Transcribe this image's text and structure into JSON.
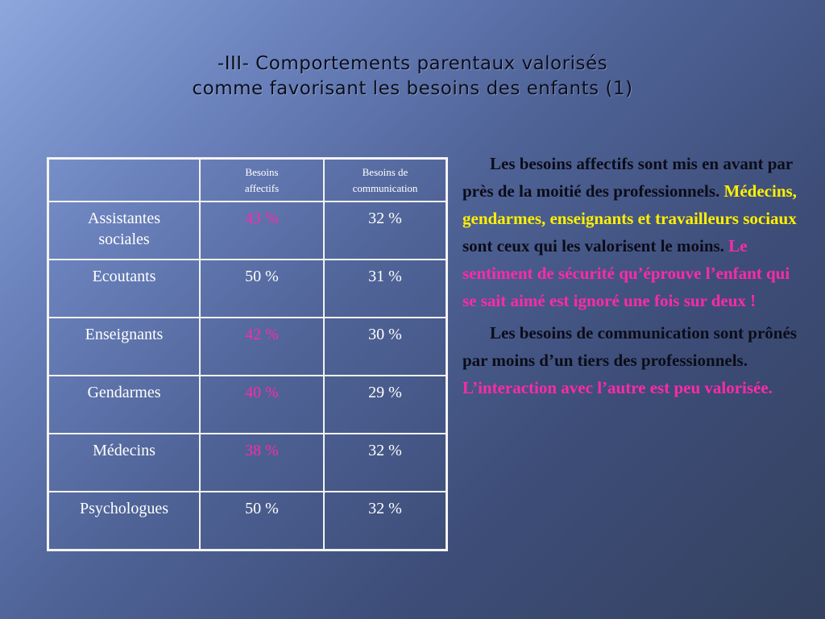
{
  "title": {
    "line1": "-III- Comportements parentaux valorisés",
    "line2": "comme favorisant les besoins des enfants (1)"
  },
  "table": {
    "headers": [
      "",
      "Besoins affectifs",
      "Besoins de communication"
    ],
    "rows": [
      {
        "label": "Assistantes sociales",
        "affectifs": "43 %",
        "communication": "32 %",
        "highlight": true
      },
      {
        "label": "Ecoutants",
        "affectifs": "50 %",
        "communication": "31 %",
        "highlight": false
      },
      {
        "label": "Enseignants",
        "affectifs": "42 %",
        "communication": "30 %",
        "highlight": true
      },
      {
        "label": "Gendarmes",
        "affectifs": "40 %",
        "communication": "29 %",
        "highlight": true
      },
      {
        "label": "Médecins",
        "affectifs": "38 %",
        "communication": "32 %",
        "highlight": true
      },
      {
        "label": "Psychologues",
        "affectifs": "50 %",
        "communication": "32 %",
        "highlight": false
      }
    ]
  },
  "text": {
    "p1_a": "Les besoins affectifs sont mis en avant par près de la moitié des professionnels. ",
    "p1_b": "Médecins, gendarmes, enseignants et travailleurs sociaux",
    "p1_c": " sont ceux qui les valorisent le moins. ",
    "p1_d": "Le sentiment de sécurité qu’éprouve l’enfant qui se sait aimé est ignoré une fois sur deux !",
    "p2_a": "Les besoins de communication sont prônés par moins d’un tiers des professionnels. ",
    "p2_b": "L’interaction avec l’autre est peu valorisée."
  },
  "colors": {
    "highlight_pink": "#ff2aa8",
    "highlight_yellow": "#fff000",
    "table_border": "#f3f3f3"
  }
}
